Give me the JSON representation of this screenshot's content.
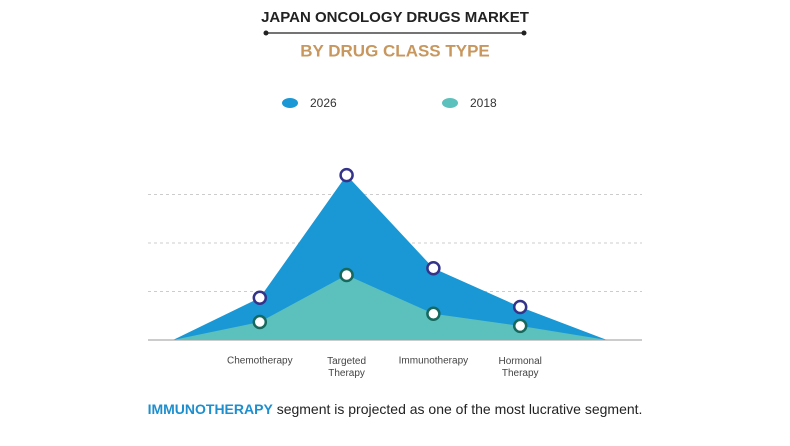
{
  "chart_data": {
    "type": "area",
    "title": "JAPAN ONCOLOGY DRUGS MARKET",
    "subtitle": "BY DRUG CLASS TYPE",
    "categories": [
      null,
      "Chemotherapy",
      "Targeted Therapy",
      "Immunotherapy",
      "Hormonal Therapy",
      null
    ],
    "series": [
      {
        "name": "2026",
        "color": "#1a98d5",
        "values": [
          0,
          0.87,
          3.4,
          1.48,
          0.68,
          0
        ]
      },
      {
        "name": "2018",
        "color": "#5cc1bd",
        "values": [
          0,
          0.37,
          1.34,
          0.54,
          0.29,
          0
        ]
      }
    ],
    "ylim": [
      0,
      3.5
    ],
    "yticks": [
      0,
      1,
      2,
      3
    ],
    "grid": true,
    "footer": {
      "highlight": "IMMUNOTHERAPY",
      "text": "segment is projected as one of the most lucrative segment."
    }
  }
}
